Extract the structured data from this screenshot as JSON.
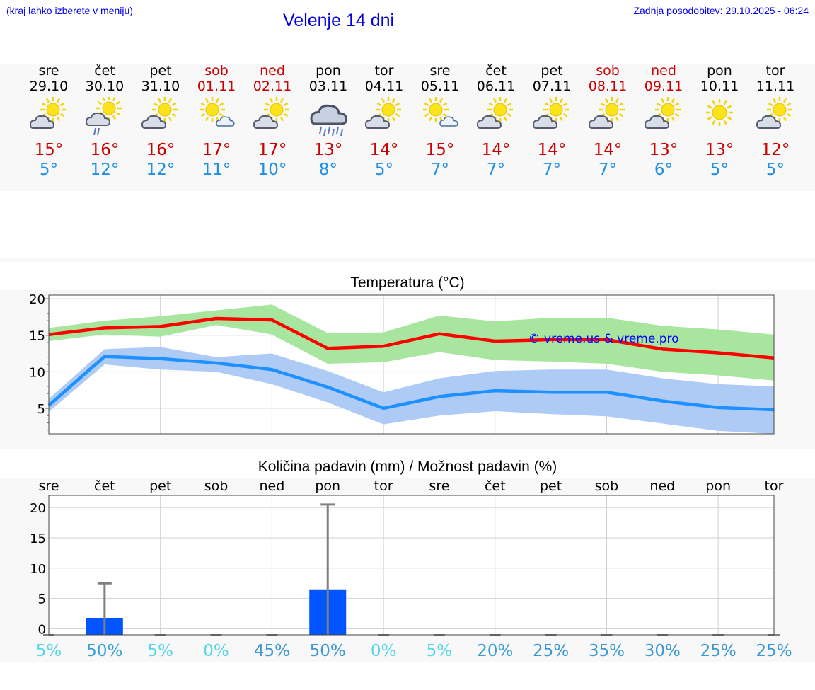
{
  "header": {
    "hint": "(kraj lahko izberete v meniju)",
    "title": "Velenje 14 dni",
    "updated": "Zadnja posodobitev: 29.10.2025 - 06:24"
  },
  "days": [
    {
      "name": "sre",
      "date": "29.10",
      "weekend": false,
      "icon": "sun-cloud-icon",
      "max": "15°",
      "min": "5°"
    },
    {
      "name": "čet",
      "date": "30.10",
      "weekend": false,
      "icon": "sun-cloud-drizzle-icon",
      "max": "16°",
      "min": "12°"
    },
    {
      "name": "pet",
      "date": "31.10",
      "weekend": false,
      "icon": "sun-cloud-icon",
      "max": "16°",
      "min": "12°"
    },
    {
      "name": "sob",
      "date": "01.11",
      "weekend": true,
      "icon": "sun-small-cloud-icon",
      "max": "17°",
      "min": "11°"
    },
    {
      "name": "ned",
      "date": "02.11",
      "weekend": true,
      "icon": "sun-cloud-icon",
      "max": "17°",
      "min": "10°"
    },
    {
      "name": "pon",
      "date": "03.11",
      "weekend": false,
      "icon": "rain-cloud-icon",
      "max": "13°",
      "min": "8°"
    },
    {
      "name": "tor",
      "date": "04.11",
      "weekend": false,
      "icon": "sun-cloud-icon",
      "max": "14°",
      "min": "5°"
    },
    {
      "name": "sre",
      "date": "05.11",
      "weekend": false,
      "icon": "sun-small-cloud-icon",
      "max": "15°",
      "min": "7°"
    },
    {
      "name": "čet",
      "date": "06.11",
      "weekend": false,
      "icon": "sun-cloud-icon",
      "max": "14°",
      "min": "7°"
    },
    {
      "name": "pet",
      "date": "07.11",
      "weekend": false,
      "icon": "sun-cloud-icon",
      "max": "14°",
      "min": "7°"
    },
    {
      "name": "sob",
      "date": "08.11",
      "weekend": true,
      "icon": "sun-cloud-icon",
      "max": "14°",
      "min": "7°"
    },
    {
      "name": "ned",
      "date": "09.11",
      "weekend": true,
      "icon": "sun-cloud-icon",
      "max": "13°",
      "min": "6°"
    },
    {
      "name": "pon",
      "date": "10.11",
      "weekend": false,
      "icon": "sun-icon",
      "max": "13°",
      "min": "5°"
    },
    {
      "name": "tor",
      "date": "11.11",
      "weekend": false,
      "icon": "sun-cloud-icon",
      "max": "12°",
      "min": "5°"
    }
  ],
  "chart_data": [
    {
      "type": "line",
      "title": "Temperatura (°C)",
      "watermark": "© vreme.us & vreme.pro",
      "x": [
        0,
        1,
        2,
        3,
        4,
        5,
        6,
        7,
        8,
        9,
        10,
        11,
        12,
        13
      ],
      "ylim": [
        1.5,
        20.5
      ],
      "yticks": [
        5,
        10,
        15,
        20
      ],
      "grid": true,
      "series": [
        {
          "name": "max",
          "color": "#ff0000",
          "values": [
            15.1,
            16.0,
            16.2,
            17.3,
            17.1,
            13.2,
            13.5,
            15.2,
            14.2,
            14.4,
            14.4,
            13.1,
            12.6,
            11.9
          ],
          "band_low": [
            14.2,
            15.1,
            14.8,
            16.4,
            15.1,
            11.1,
            11.3,
            12.7,
            11.6,
            11.4,
            11.1,
            10.0,
            9.5,
            8.8
          ],
          "band_high": [
            16.0,
            17.0,
            17.6,
            18.4,
            19.2,
            15.3,
            15.4,
            17.7,
            16.9,
            17.4,
            17.4,
            16.3,
            15.8,
            15.1
          ],
          "band_color": "#a8e6a0"
        },
        {
          "name": "min",
          "color": "#1e90ff",
          "values": [
            5.4,
            12.1,
            11.8,
            11.2,
            10.3,
            7.9,
            5.0,
            6.6,
            7.4,
            7.2,
            7.2,
            6.0,
            5.1,
            4.8
          ],
          "band_low": [
            4.5,
            11.0,
            10.3,
            10.0,
            8.3,
            5.8,
            2.8,
            4.0,
            4.6,
            4.2,
            3.9,
            2.9,
            1.9,
            1.5
          ],
          "band_high": [
            6.3,
            13.1,
            13.4,
            12.0,
            12.5,
            10.1,
            7.2,
            9.1,
            10.1,
            10.3,
            10.3,
            9.1,
            8.3,
            8.0
          ],
          "band_color": "#aecbf5"
        }
      ]
    },
    {
      "type": "bar",
      "title": "Količina padavin (mm) / Možnost padavin (%)",
      "categories": [
        "sre",
        "čet",
        "pet",
        "sob",
        "ned",
        "pon",
        "tor",
        "sre",
        "čet",
        "pet",
        "sob",
        "ned",
        "pon",
        "tor"
      ],
      "values": [
        0,
        1.8,
        0,
        0,
        0,
        6.5,
        0,
        0,
        0,
        0,
        0,
        0,
        0,
        0
      ],
      "error_max": [
        0,
        7.5,
        0,
        0,
        0,
        20.5,
        0,
        0,
        0,
        0,
        0,
        0,
        0,
        0
      ],
      "probability": [
        "5%",
        "50%",
        "5%",
        "0%",
        "45%",
        "50%",
        "0%",
        "5%",
        "20%",
        "25%",
        "35%",
        "30%",
        "25%",
        "25%"
      ],
      "ylim": [
        -1,
        22
      ],
      "yticks": [
        0,
        5,
        10,
        15,
        20
      ],
      "grid": true,
      "bar_color": "#0055ff",
      "error_color": "#808080"
    }
  ]
}
